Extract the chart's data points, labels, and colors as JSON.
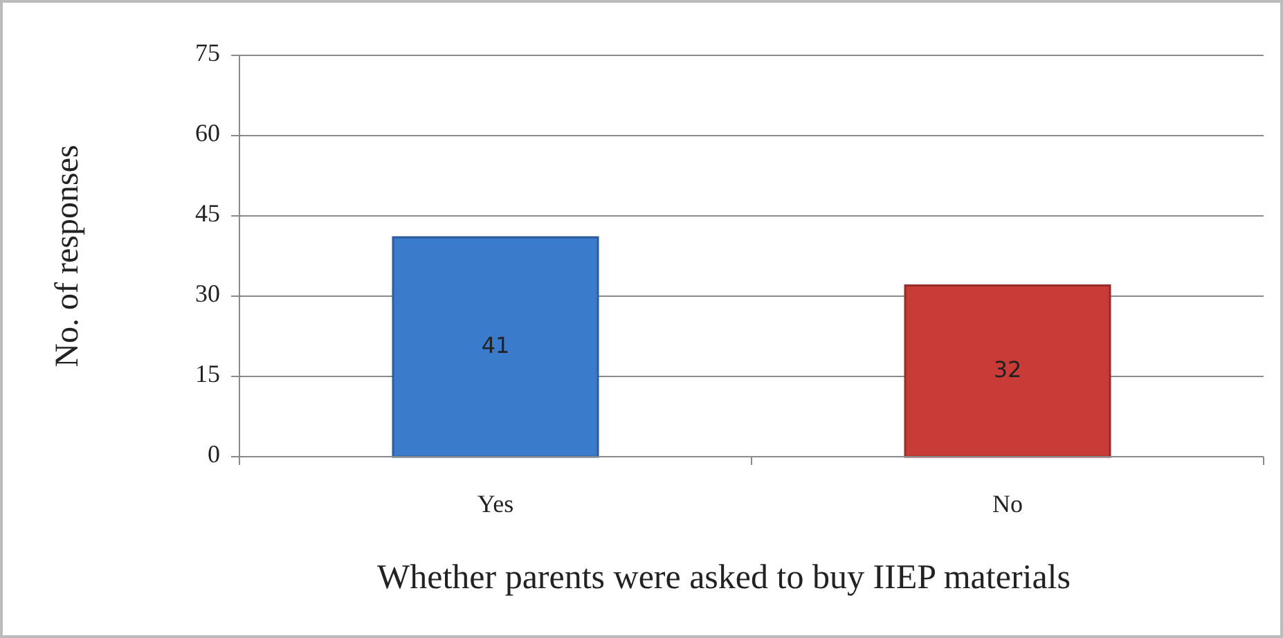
{
  "chart_data": {
    "type": "bar",
    "xlabel": "Whether parents were asked to buy IIEP materials",
    "ylabel": "No. of responses",
    "categories": [
      "Yes",
      "No"
    ],
    "values": [
      41,
      32
    ],
    "colors": [
      "#3b7bcc",
      "#c93b37"
    ],
    "ylim": [
      0,
      75
    ],
    "yticks": [
      0,
      15,
      30,
      45,
      60,
      75
    ],
    "grid": "y",
    "data_labels": true
  }
}
